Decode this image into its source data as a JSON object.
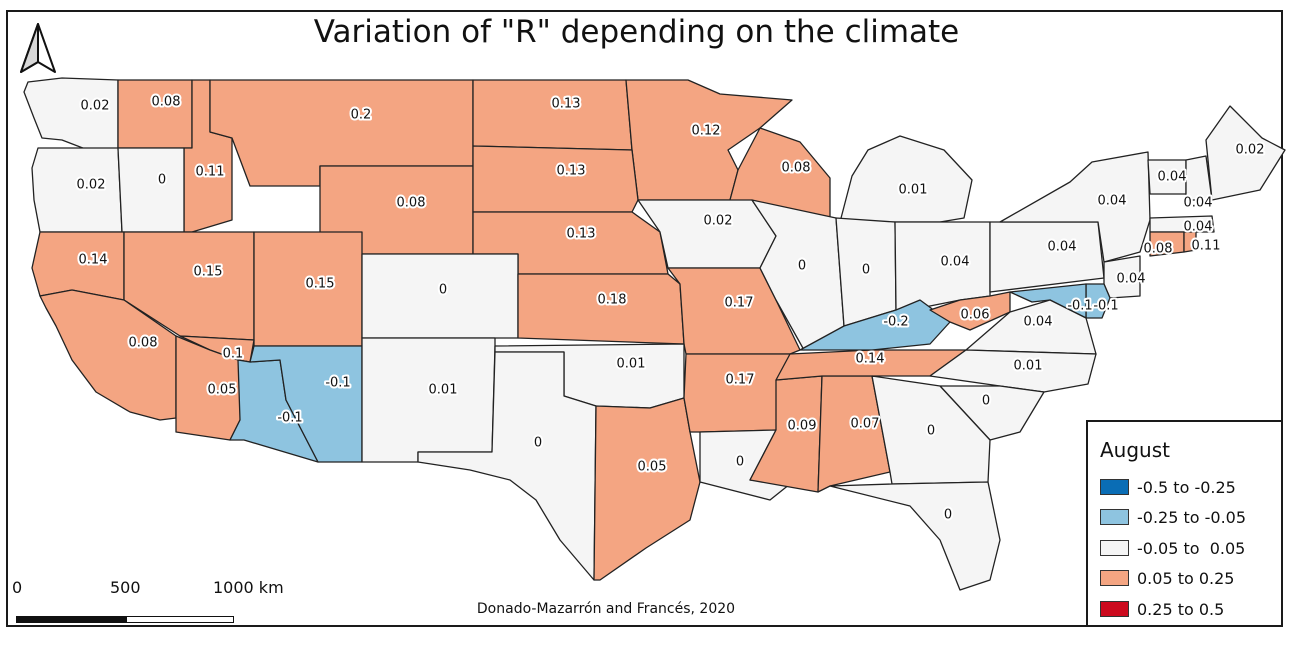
{
  "title": "Variation of \"R\" depending on the climate",
  "credit": "Donado-Mazarrón and Francés, 2020",
  "scale_bar": {
    "labels": [
      "0",
      "500",
      "1000 km"
    ]
  },
  "legend": {
    "title": "August",
    "classes": [
      {
        "label": "-0.5 to -0.25",
        "color": "#0a6db5"
      },
      {
        "label": "-0.25 to -0.05",
        "color": "#8ec4e0"
      },
      {
        "label": "-0.05 to  0.05",
        "color": "#f5f5f5"
      },
      {
        "label": "0.05 to 0.25",
        "color": "#f4a582"
      },
      {
        "label": "0.25 to 0.5",
        "color": "#cc0a1e"
      }
    ]
  },
  "chart_data": {
    "type": "choropleth",
    "variable": "R",
    "month": "August",
    "regions": [
      {
        "name": "WA",
        "value": 0.02
      },
      {
        "name": "ID (north)",
        "value": 0.08
      },
      {
        "name": "ID",
        "value": 0.11
      },
      {
        "name": "MT",
        "value": 0.2
      },
      {
        "name": "ND",
        "value": 0.13
      },
      {
        "name": "MN",
        "value": 0.12
      },
      {
        "name": "OR",
        "value": 0.02
      },
      {
        "name": "OR (east)",
        "value": 0
      },
      {
        "name": "WY",
        "value": 0.08
      },
      {
        "name": "SD",
        "value": 0.13
      },
      {
        "name": "WI",
        "value": 0.08
      },
      {
        "name": "MI",
        "value": 0.01
      },
      {
        "name": "NE",
        "value": 0.13
      },
      {
        "name": "IA",
        "value": 0.02
      },
      {
        "name": "NV",
        "value": 0.14
      },
      {
        "name": "UT (west)",
        "value": 0.15
      },
      {
        "name": "UT",
        "value": 0.15
      },
      {
        "name": "CO",
        "value": 0
      },
      {
        "name": "KS",
        "value": 0.18
      },
      {
        "name": "MO",
        "value": 0.17
      },
      {
        "name": "IL",
        "value": 0
      },
      {
        "name": "IN",
        "value": 0
      },
      {
        "name": "OH",
        "value": 0.04
      },
      {
        "name": "PA",
        "value": 0.04
      },
      {
        "name": "NY",
        "value": 0.04
      },
      {
        "name": "VT",
        "value": 0.04
      },
      {
        "name": "NH",
        "value": 0.04
      },
      {
        "name": "ME",
        "value": 0.02
      },
      {
        "name": "MA",
        "value": 0.04
      },
      {
        "name": "CT",
        "value": 0.08
      },
      {
        "name": "RI",
        "value": 0.11
      },
      {
        "name": "NJ",
        "value": 0.04
      },
      {
        "name": "DE",
        "value": -0.1
      },
      {
        "name": "MD",
        "value": -0.1
      },
      {
        "name": "CA",
        "value": 0.08
      },
      {
        "name": "CA (southeast)",
        "value": 0.1
      },
      {
        "name": "CA (south)",
        "value": 0.05
      },
      {
        "name": "AZ (west)",
        "value": -0.1
      },
      {
        "name": "AZ",
        "value": -0.1
      },
      {
        "name": "NM",
        "value": 0.01
      },
      {
        "name": "OK",
        "value": 0.01
      },
      {
        "name": "TX",
        "value": 0
      },
      {
        "name": "TX (east)",
        "value": 0.05
      },
      {
        "name": "AR",
        "value": 0.17
      },
      {
        "name": "LA",
        "value": 0
      },
      {
        "name": "MS",
        "value": 0.09
      },
      {
        "name": "AL",
        "value": 0.07
      },
      {
        "name": "TN",
        "value": 0.14
      },
      {
        "name": "KY",
        "value": -0.2
      },
      {
        "name": "WV",
        "value": 0.06
      },
      {
        "name": "VA",
        "value": 0.04
      },
      {
        "name": "NC",
        "value": 0.01
      },
      {
        "name": "SC",
        "value": 0
      },
      {
        "name": "GA",
        "value": 0
      },
      {
        "name": "FL",
        "value": 0
      }
    ]
  }
}
